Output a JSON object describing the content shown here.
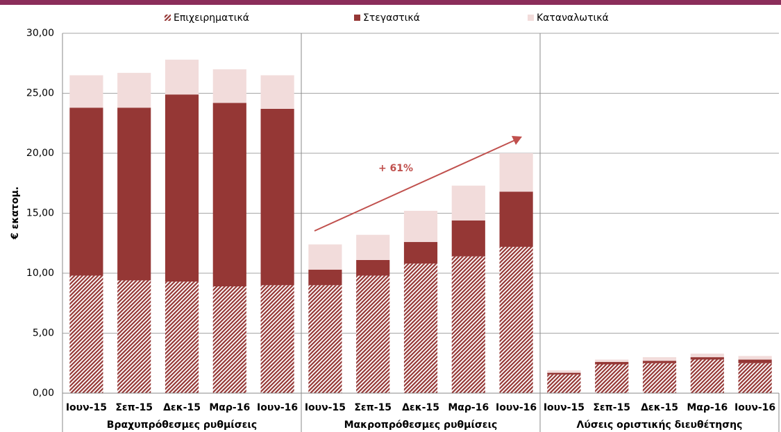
{
  "chart_data": {
    "type": "stacked_bar",
    "y_label": "€ εκατομ.",
    "categories": [
      "Ιουν-15",
      "Σεπ-15",
      "Δεκ-15",
      "Μαρ-16",
      "Ιουν-16",
      "Ιουν-15",
      "Σεπ-15",
      "Δεκ-15",
      "Μαρ-16",
      "Ιουν-16",
      "Ιουν-15",
      "Σεπ-15",
      "Δεκ-15",
      "Μαρ-16",
      "Ιουν-16"
    ],
    "groups": [
      {
        "label": "Βραχυπρόθεσμες ρυθμίσεις",
        "size": 5
      },
      {
        "label": "Μακροπρόθεσμες ρυθμίσεις",
        "size": 5
      },
      {
        "label": "Λύσεις οριστικής διευθέτησης",
        "size": 5
      }
    ],
    "series": [
      {
        "name": "Επιχειρηματικά",
        "color": "#943634",
        "pattern": "hatch",
        "values": [
          9.8,
          9.4,
          9.3,
          8.9,
          9.0,
          9.0,
          9.8,
          10.8,
          11.4,
          12.2,
          1.55,
          2.4,
          2.5,
          2.8,
          2.5
        ]
      },
      {
        "name": "Στεγαστικά",
        "color": "#953735",
        "values": [
          14.0,
          14.4,
          15.6,
          15.3,
          14.7,
          1.3,
          1.3,
          1.8,
          3.0,
          4.6,
          0.15,
          0.2,
          0.2,
          0.2,
          0.3
        ]
      },
      {
        "name": "Καταναλωτικά",
        "color": "#f2dcdb",
        "values": [
          2.7,
          2.9,
          2.9,
          2.8,
          2.8,
          2.1,
          2.1,
          2.6,
          2.9,
          3.2,
          0.2,
          0.2,
          0.3,
          0.3,
          0.3
        ]
      }
    ],
    "ylim": [
      0,
      30
    ],
    "yticks": [
      {
        "value": 0,
        "label": "0,00"
      },
      {
        "value": 5,
        "label": "5,00"
      },
      {
        "value": 10,
        "label": "10,00"
      },
      {
        "value": 15,
        "label": "15,00"
      },
      {
        "value": 20,
        "label": "20,00"
      },
      {
        "value": 25,
        "label": "25,00"
      },
      {
        "value": 30,
        "label": "30,00"
      }
    ],
    "grid": true,
    "legend": "top",
    "annotation": "+ 61%"
  }
}
